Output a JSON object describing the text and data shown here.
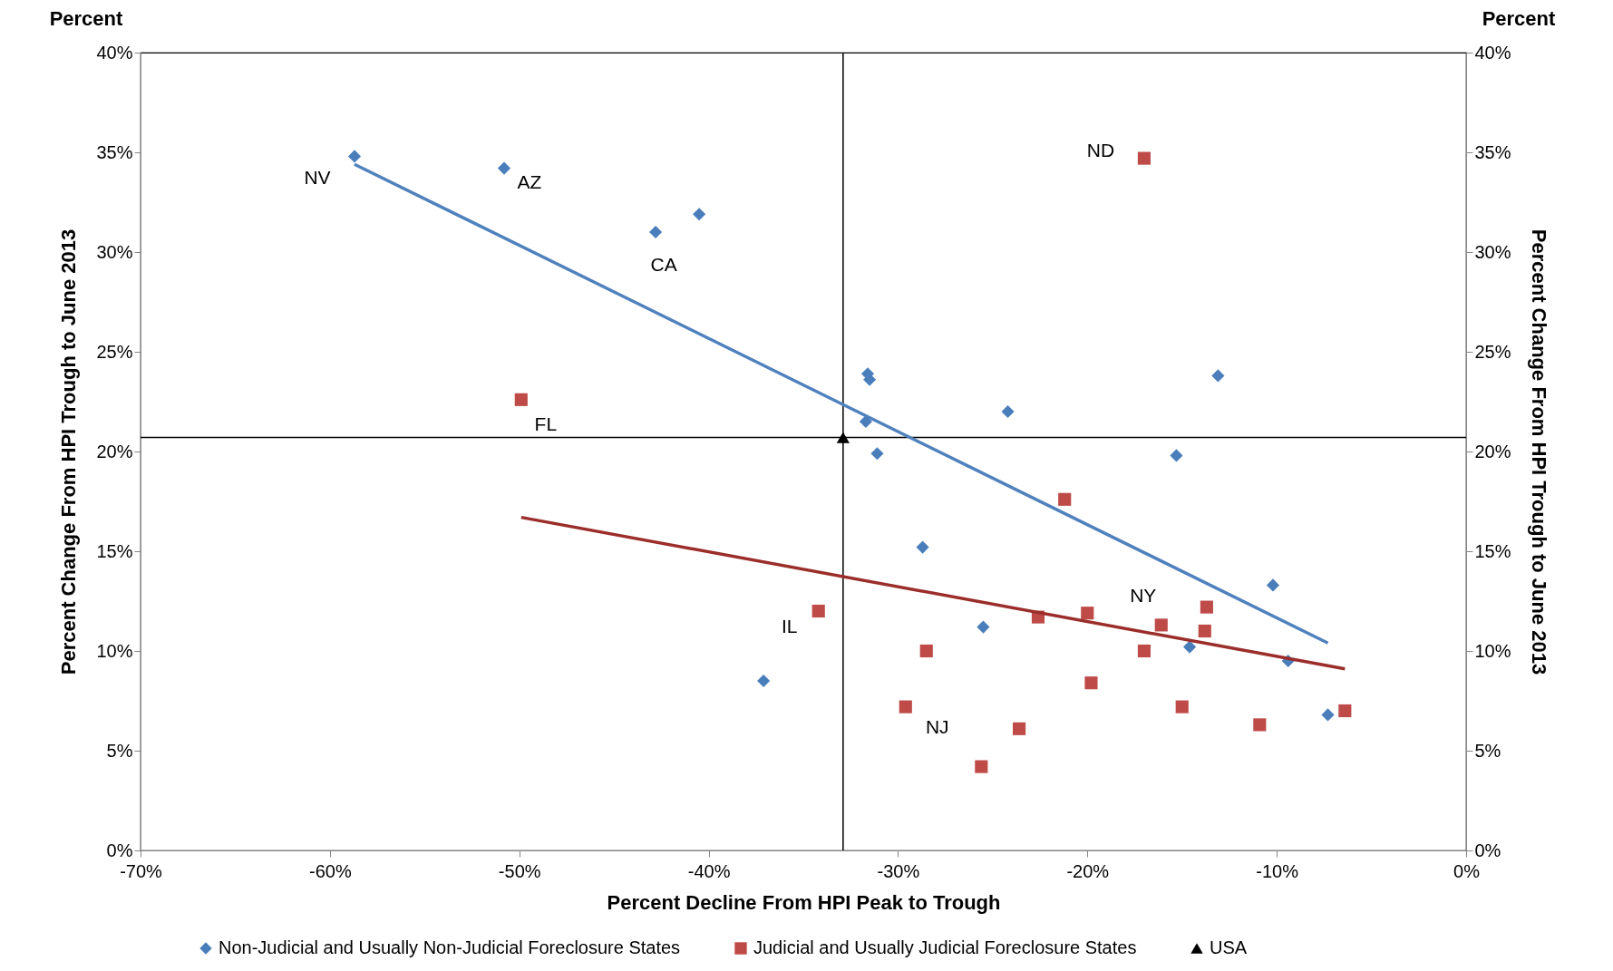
{
  "chart_data": {
    "type": "scatter",
    "xlabel": "Percent Decline From HPI Peak to Trough",
    "ylabel": "Percent Change From HPI Trough to June 2013",
    "y2label": "Percent Change From HPI Trough to June 2013",
    "xlim": [
      -70,
      0
    ],
    "xticks": [
      {
        "value": -70,
        "label": "-70%"
      },
      {
        "value": -60,
        "label": "-60%"
      },
      {
        "value": -50,
        "label": "-50%"
      },
      {
        "value": -40,
        "label": "-40%"
      },
      {
        "value": -30,
        "label": "-30%"
      },
      {
        "value": -20,
        "label": "-20%"
      },
      {
        "value": -10,
        "label": "-10%"
      },
      {
        "value": 0,
        "label": "0%"
      }
    ],
    "ylim": [
      0,
      40
    ],
    "yticks": [
      {
        "value": 0,
        "label": "0%"
      },
      {
        "value": 5,
        "label": "5%"
      },
      {
        "value": 10,
        "label": "10%"
      },
      {
        "value": 15,
        "label": "15%"
      },
      {
        "value": 20,
        "label": "20%"
      },
      {
        "value": 25,
        "label": "25%"
      },
      {
        "value": 30,
        "label": "30%"
      },
      {
        "value": 35,
        "label": "35%"
      },
      {
        "value": 40,
        "label": "40%"
      }
    ],
    "y2lim": [
      0,
      40
    ],
    "y2ticks": [
      {
        "value": 0,
        "label": "0%"
      },
      {
        "value": 5,
        "label": "5%"
      },
      {
        "value": 10,
        "label": "10%"
      },
      {
        "value": 15,
        "label": "15%"
      },
      {
        "value": 20,
        "label": "20%"
      },
      {
        "value": 25,
        "label": "25%"
      },
      {
        "value": 30,
        "label": "30%"
      },
      {
        "value": 35,
        "label": "35%"
      },
      {
        "value": 40,
        "label": "40%"
      }
    ],
    "grid": false,
    "legend": "bottom",
    "series": [
      {
        "name": "Non-Judicial and Usually Non-Judicial Foreclosure States",
        "color": "#4a7ebb",
        "marker": "diamond",
        "x": [
          -58.7,
          -50.8,
          -42.8,
          -40.5,
          -31.6,
          -31.5,
          -31.7,
          -31.1,
          -24.2,
          -13.1,
          -15.3,
          -28.7,
          -25.5,
          -37.1,
          -10.2,
          -14.6,
          -9.4,
          -7.3
        ],
        "values": [
          34.8,
          34.2,
          31.0,
          31.9,
          23.9,
          23.6,
          21.5,
          19.9,
          22.0,
          23.8,
          19.8,
          15.2,
          11.2,
          8.5,
          13.3,
          10.2,
          9.5,
          6.8
        ]
      },
      {
        "name": "Judicial and Usually Judicial Foreclosure States",
        "color": "#be4b48",
        "marker": "square",
        "x": [
          -17.0,
          -49.9,
          -21.2,
          -34.2,
          -28.5,
          -29.6,
          -25.6,
          -23.6,
          -22.6,
          -20.0,
          -19.8,
          -17.0,
          -16.1,
          -13.7,
          -13.8,
          -15.0,
          -10.9,
          -6.4
        ],
        "values": [
          34.7,
          22.6,
          17.6,
          12.0,
          10.0,
          7.2,
          4.2,
          6.1,
          11.7,
          11.9,
          8.4,
          10.0,
          11.3,
          12.2,
          11.0,
          7.2,
          6.3,
          7.0
        ]
      },
      {
        "name": "USA",
        "color": "#000000",
        "marker": "triangle",
        "x": [
          -32.9
        ],
        "values": [
          20.7
        ]
      },
      {
        "type": "line",
        "color": "#4f81bd",
        "x": [
          -58.7,
          -7.3
        ],
        "values": [
          34.4,
          10.4
        ]
      },
      {
        "type": "line",
        "color": "#9b2d2a",
        "x": [
          -49.9,
          -6.4
        ],
        "values": [
          16.7,
          9.1
        ]
      }
    ],
    "ref_lines": [
      {
        "axis": "x",
        "value": -32.9,
        "color": "#000000"
      },
      {
        "axis": "y",
        "value": 20.7,
        "color": "#000000"
      }
    ],
    "annotations": [
      "Percent",
      "Percent",
      {
        "text": "NV",
        "x": -58.7,
        "y": 34.8
      },
      {
        "text": "AZ",
        "x": -50.8,
        "y": 34.2
      },
      {
        "text": "CA",
        "x": -42.8,
        "y": 31.0
      },
      {
        "text": "FL",
        "x": -49.9,
        "y": 22.6
      },
      {
        "text": "ND",
        "x": -17.0,
        "y": 34.7
      },
      {
        "text": "IL",
        "x": -34.2,
        "y": 12.0
      },
      {
        "text": "NJ",
        "x": -29.6,
        "y": 7.2
      },
      {
        "text": "NY",
        "x": -16.1,
        "y": 11.3
      }
    ]
  }
}
